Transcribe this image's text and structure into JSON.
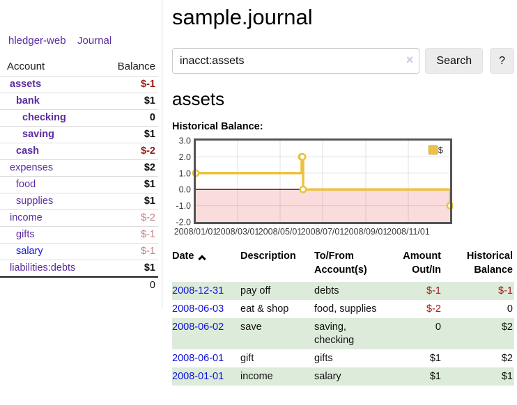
{
  "app": {
    "brand": "hledger-web"
  },
  "sidebar": {
    "journal_link": "Journal",
    "accounts": {
      "header_account": "Account",
      "header_balance": "Balance",
      "rows": [
        {
          "name": "assets",
          "indent": 1,
          "bold": true,
          "link_color": "purple",
          "balance": "$-1",
          "balance_class": "neg-strong"
        },
        {
          "name": "bank",
          "indent": 2,
          "bold": true,
          "link_color": "purple",
          "balance": "$1",
          "balance_class": "pos"
        },
        {
          "name": "checking",
          "indent": 3,
          "bold": true,
          "link_color": "purple",
          "balance": "0",
          "balance_class": "pos"
        },
        {
          "name": "saving",
          "indent": 3,
          "bold": true,
          "link_color": "purple",
          "balance": "$1",
          "balance_class": "pos"
        },
        {
          "name": "cash",
          "indent": 2,
          "bold": true,
          "link_color": "purple",
          "balance": "$-2",
          "balance_class": "neg-strong"
        },
        {
          "name": "expenses",
          "indent": 1,
          "bold": false,
          "link_color": "purple",
          "balance": "$2",
          "balance_class": "pos"
        },
        {
          "name": "food",
          "indent": 2,
          "bold": false,
          "link_color": "purple",
          "balance": "$1",
          "balance_class": "pos"
        },
        {
          "name": "supplies",
          "indent": 2,
          "bold": false,
          "link_color": "purple",
          "balance": "$1",
          "balance_class": "pos"
        },
        {
          "name": "income",
          "indent": 1,
          "bold": false,
          "link_color": "purple",
          "balance": "$-2",
          "balance_class": "neg-soft"
        },
        {
          "name": "gifts",
          "indent": 2,
          "bold": false,
          "link_color": "purple",
          "balance": "$-1",
          "balance_class": "neg-soft"
        },
        {
          "name": "salary",
          "indent": 2,
          "bold": false,
          "link_color": "blue",
          "balance": "$-1",
          "balance_class": "neg-soft"
        },
        {
          "name": "liabilities:debts",
          "indent": 1,
          "bold": false,
          "link_color": "purple",
          "balance": "$1",
          "balance_class": "pos"
        }
      ],
      "total": "0"
    }
  },
  "header": {
    "title": "sample.journal"
  },
  "search": {
    "value": "inacct:assets",
    "clear_icon": "×",
    "button_label": "Search",
    "help_label": "?"
  },
  "account_page": {
    "title": "assets",
    "chart_heading": "Historical Balance:"
  },
  "chart_data": {
    "type": "line",
    "step": true,
    "title": "Historical Balance",
    "series": [
      {
        "name": "$",
        "color": "#edc240",
        "points": [
          [
            "2008-01-01",
            1
          ],
          [
            "2008-06-01",
            2
          ],
          [
            "2008-06-02",
            2
          ],
          [
            "2008-06-03",
            0
          ],
          [
            "2008-12-31",
            -1
          ]
        ]
      }
    ],
    "x_range": [
      "2008-01-01",
      "2008-12-31"
    ],
    "x_ticks": [
      "2008/01/01",
      "2008/03/01",
      "2008/05/01",
      "2008/07/01",
      "2008/09/01",
      "2008/11/01"
    ],
    "y_ticks": [
      "3.0",
      "2.0",
      "1.0",
      "0.0",
      "-1.0",
      "-2.0"
    ],
    "ylim": [
      -2,
      3
    ],
    "grid": true,
    "legend_position": "top-right",
    "negative_region_color": "#fbdcdc",
    "zero_line_color": "#8b0000"
  },
  "register": {
    "headers": [
      {
        "label": "Date",
        "align": "left",
        "sort": "asc"
      },
      {
        "label": "Description",
        "align": "left"
      },
      {
        "label": "To/From Account(s)",
        "align": "left"
      },
      {
        "label": "Amount Out/In",
        "align": "right"
      },
      {
        "label": "Historical Balance",
        "align": "right"
      }
    ],
    "rows": [
      {
        "date": "2008-12-31",
        "description": "pay off",
        "accounts": "debts",
        "amount": "$-1",
        "amount_class": "neg",
        "balance": "$-1",
        "balance_class": "neg"
      },
      {
        "date": "2008-06-03",
        "description": "eat & shop",
        "accounts": "food, supplies",
        "amount": "$-2",
        "amount_class": "neg",
        "balance": "0",
        "balance_class": "pos"
      },
      {
        "date": "2008-06-02",
        "description": "save",
        "accounts": "saving, checking",
        "amount": "0",
        "amount_class": "pos",
        "balance": "$2",
        "balance_class": "pos"
      },
      {
        "date": "2008-06-01",
        "description": "gift",
        "accounts": "gifts",
        "amount": "$1",
        "amount_class": "pos",
        "balance": "$2",
        "balance_class": "pos"
      },
      {
        "date": "2008-01-01",
        "description": "income",
        "accounts": "salary",
        "amount": "$1",
        "amount_class": "pos",
        "balance": "$1",
        "balance_class": "pos"
      }
    ]
  },
  "colors": {
    "purple": "#5b2ca0",
    "blue": "#0f12d8",
    "neg": "#9c1717",
    "neg_soft": "#c28282",
    "row_green": "#ddecda",
    "accent_yellow": "#edc240"
  }
}
